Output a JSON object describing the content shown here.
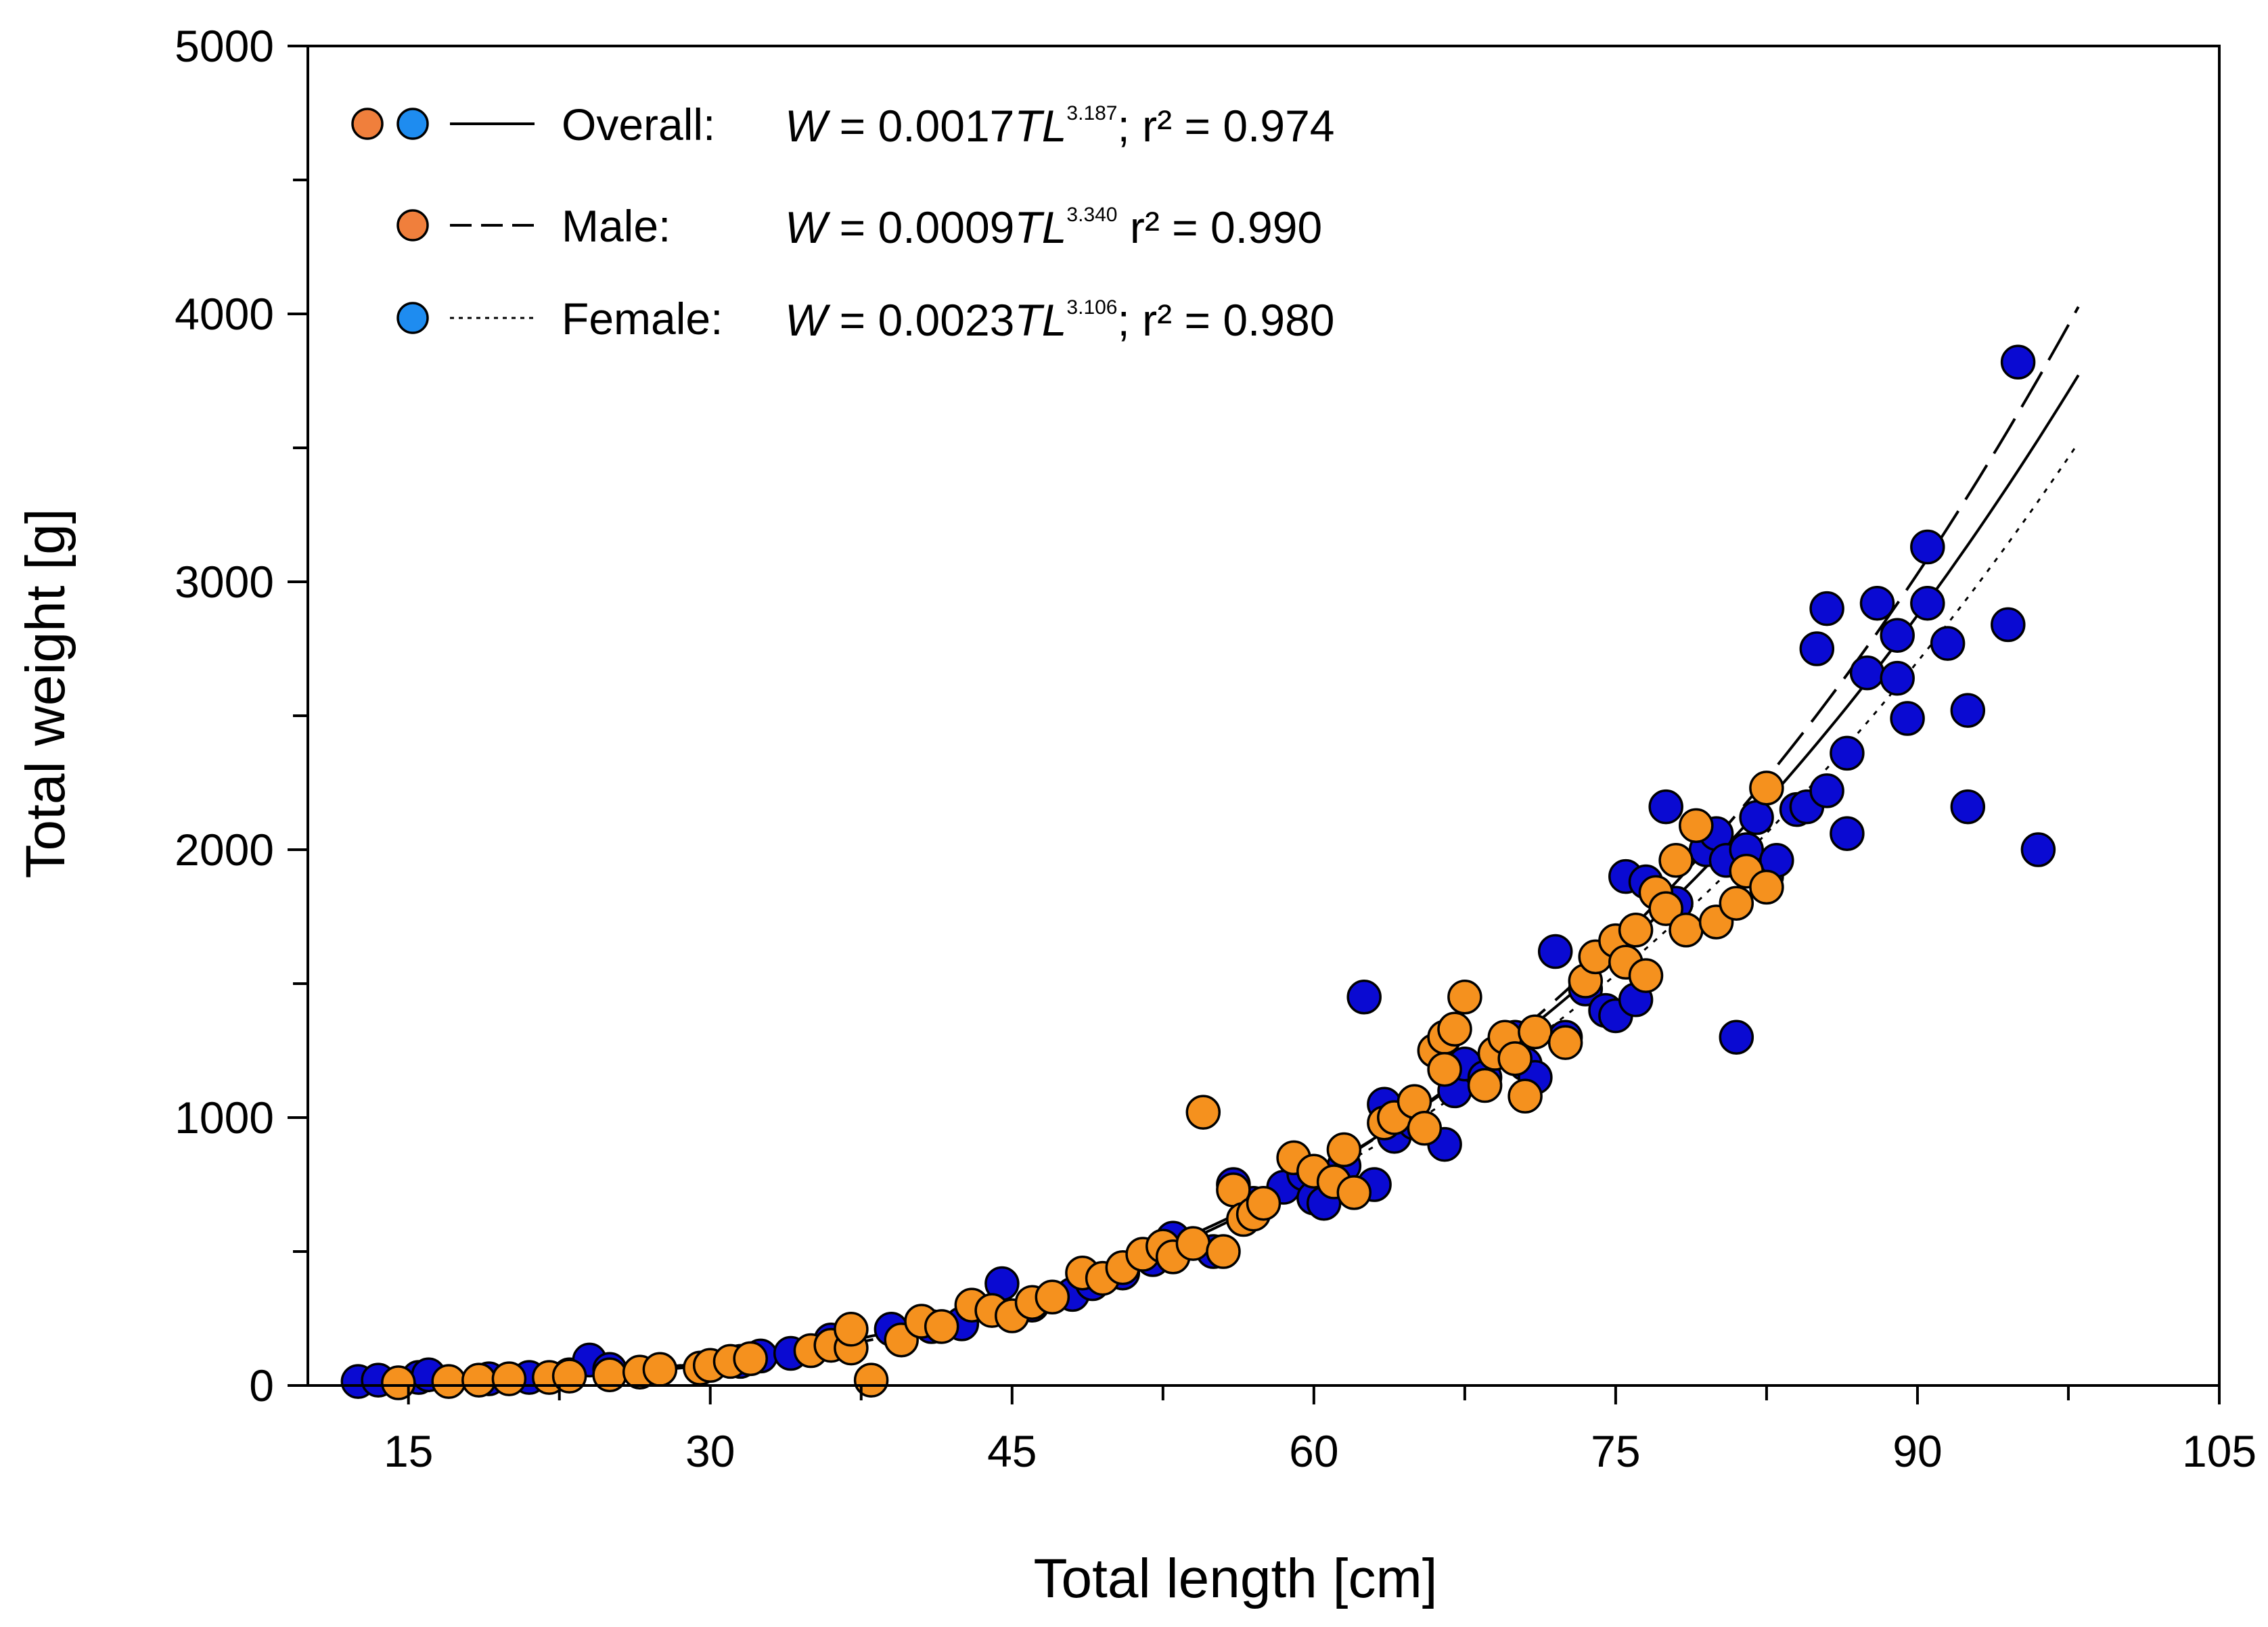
{
  "chart_data": {
    "type": "scatter",
    "title": "",
    "xlabel": "Total length [cm]",
    "ylabel": "Total weight [g]",
    "xlim": [
      10,
      105
    ],
    "ylim": [
      0,
      5000
    ],
    "xticks": [
      15,
      30,
      45,
      60,
      75,
      90,
      105
    ],
    "xticks_minor_step": 7.5,
    "yticks": [
      0,
      1000,
      2000,
      3000,
      4000,
      5000
    ],
    "yticks_minor_step": 500,
    "grid": false,
    "legend_position": "top-left",
    "colors": {
      "male": "#f5911e",
      "male_legend": "#f07f3c",
      "female": "#0a0ad2",
      "female_legend": "#1e8cf0",
      "curve": "#000000"
    },
    "legend": [
      {
        "key": "overall",
        "label": "Overall:",
        "markers": [
          "male_legend",
          "female_legend"
        ],
        "line_style": "solid",
        "eq_lhs": "W",
        "eq_coef": " = 0.0017",
        "eq_var": "TL",
        "eq_exp": "3.187",
        "eq_tail": "; r² = 0.974"
      },
      {
        "key": "male",
        "label": "Male:",
        "markers": [
          "male_legend"
        ],
        "line_style": "dashed",
        "eq_lhs": "W",
        "eq_coef": " = 0.0009",
        "eq_var": "TL",
        "eq_exp": "3.340",
        "eq_tail": " r² = 0.990"
      },
      {
        "key": "female",
        "label": "Female:",
        "markers": [
          "female_legend"
        ],
        "line_style": "dotted",
        "eq_lhs": "W",
        "eq_coef": " = 0.0023",
        "eq_var": "TL",
        "eq_exp": "3.106",
        "eq_tail": "; r² = 0.980"
      }
    ],
    "curves": [
      {
        "name": "Overall",
        "a": 0.0017,
        "b": 3.187,
        "style": "solid",
        "x_range": [
          12,
          98
        ]
      },
      {
        "name": "Male",
        "a": 0.0009,
        "b": 3.34,
        "style": "dashed",
        "x_range": [
          12,
          98
        ]
      },
      {
        "name": "Female",
        "a": 0.0023,
        "b": 3.106,
        "style": "dotted",
        "x_range": [
          12,
          98
        ]
      }
    ],
    "series": [
      {
        "name": "Female",
        "color_key": "female",
        "points": [
          [
            12.5,
            15
          ],
          [
            13.5,
            20
          ],
          [
            15.5,
            30
          ],
          [
            16,
            40
          ],
          [
            19,
            25
          ],
          [
            21,
            30
          ],
          [
            23,
            40
          ],
          [
            24,
            95
          ],
          [
            25,
            60
          ],
          [
            31.5,
            90
          ],
          [
            32.5,
            110
          ],
          [
            34,
            120
          ],
          [
            36,
            170
          ],
          [
            39,
            210
          ],
          [
            41,
            220
          ],
          [
            42.5,
            230
          ],
          [
            44.5,
            380
          ],
          [
            46,
            300
          ],
          [
            48,
            340
          ],
          [
            49,
            380
          ],
          [
            50.5,
            420
          ],
          [
            52,
            470
          ],
          [
            53,
            550
          ],
          [
            55,
            500
          ],
          [
            56,
            750
          ],
          [
            57,
            680
          ],
          [
            58.5,
            740
          ],
          [
            59.5,
            790
          ],
          [
            60,
            700
          ],
          [
            60.5,
            680
          ],
          [
            61.5,
            820
          ],
          [
            62.5,
            1450
          ],
          [
            63,
            750
          ],
          [
            63.5,
            1050
          ],
          [
            64,
            930
          ],
          [
            65,
            980
          ],
          [
            66.5,
            900
          ],
          [
            67,
            1100
          ],
          [
            67.5,
            1200
          ],
          [
            68.5,
            1150
          ],
          [
            69.5,
            1250
          ],
          [
            70,
            1300
          ],
          [
            70.5,
            1200
          ],
          [
            71,
            1150
          ],
          [
            72,
            1620
          ],
          [
            72.5,
            1300
          ],
          [
            73.5,
            1480
          ],
          [
            74.5,
            1400
          ],
          [
            75,
            1380
          ],
          [
            75.5,
            1900
          ],
          [
            76,
            1440
          ],
          [
            76.5,
            1880
          ],
          [
            77.5,
            2160
          ],
          [
            78,
            1800
          ],
          [
            79.5,
            2000
          ],
          [
            80,
            2060
          ],
          [
            80.5,
            1960
          ],
          [
            81,
            1300
          ],
          [
            81.5,
            2000
          ],
          [
            82,
            2120
          ],
          [
            82.5,
            1900
          ],
          [
            83,
            1960
          ],
          [
            84,
            2150
          ],
          [
            84.5,
            2160
          ],
          [
            85,
            2750
          ],
          [
            85.5,
            2900
          ],
          [
            85.5,
            2220
          ],
          [
            86.5,
            2360
          ],
          [
            86.5,
            2060
          ],
          [
            87.5,
            2660
          ],
          [
            88,
            2920
          ],
          [
            89,
            2800
          ],
          [
            89,
            2640
          ],
          [
            89.5,
            2490
          ],
          [
            90.5,
            3130
          ],
          [
            90.5,
            2920
          ],
          [
            91.5,
            2770
          ],
          [
            92.5,
            2520
          ],
          [
            92.5,
            2160
          ],
          [
            94.5,
            2840
          ],
          [
            95,
            3820
          ],
          [
            96,
            2000
          ]
        ]
      },
      {
        "name": "Male",
        "color_key": "male",
        "points": [
          [
            14.5,
            10
          ],
          [
            17,
            15
          ],
          [
            18.5,
            20
          ],
          [
            20,
            25
          ],
          [
            22,
            30
          ],
          [
            23,
            35
          ],
          [
            25,
            40
          ],
          [
            26.5,
            50
          ],
          [
            27.5,
            60
          ],
          [
            29.5,
            65
          ],
          [
            30,
            75
          ],
          [
            31,
            90
          ],
          [
            32,
            100
          ],
          [
            35,
            130
          ],
          [
            36,
            150
          ],
          [
            37,
            140
          ],
          [
            37,
            210
          ],
          [
            38,
            20
          ],
          [
            39.5,
            170
          ],
          [
            40.5,
            240
          ],
          [
            41.5,
            220
          ],
          [
            43,
            300
          ],
          [
            44,
            280
          ],
          [
            45,
            260
          ],
          [
            46,
            310
          ],
          [
            47,
            330
          ],
          [
            48.5,
            420
          ],
          [
            49.5,
            400
          ],
          [
            50.5,
            440
          ],
          [
            51.5,
            490
          ],
          [
            52.5,
            520
          ],
          [
            53,
            480
          ],
          [
            54,
            530
          ],
          [
            54.5,
            1020
          ],
          [
            55.5,
            500
          ],
          [
            56,
            730
          ],
          [
            56.5,
            620
          ],
          [
            57,
            640
          ],
          [
            57.5,
            680
          ],
          [
            59,
            850
          ],
          [
            60,
            800
          ],
          [
            61,
            760
          ],
          [
            61.5,
            880
          ],
          [
            62,
            720
          ],
          [
            63.5,
            980
          ],
          [
            64,
            1000
          ],
          [
            65,
            1060
          ],
          [
            65.5,
            960
          ],
          [
            66,
            1250
          ],
          [
            66.5,
            1300
          ],
          [
            66.5,
            1180
          ],
          [
            67,
            1330
          ],
          [
            67.5,
            1450
          ],
          [
            68.5,
            1120
          ],
          [
            69,
            1240
          ],
          [
            69.5,
            1300
          ],
          [
            70,
            1220
          ],
          [
            70.5,
            1080
          ],
          [
            71,
            1320
          ],
          [
            72.5,
            1280
          ],
          [
            73.5,
            1510
          ],
          [
            74,
            1600
          ],
          [
            75,
            1660
          ],
          [
            75.5,
            1580
          ],
          [
            76,
            1700
          ],
          [
            76.5,
            1530
          ],
          [
            77,
            1840
          ],
          [
            77.5,
            1780
          ],
          [
            78,
            1960
          ],
          [
            78.5,
            1700
          ],
          [
            79,
            2090
          ],
          [
            80,
            1730
          ],
          [
            81,
            1800
          ],
          [
            81.5,
            1920
          ],
          [
            82.5,
            1860
          ],
          [
            82.5,
            2230
          ]
        ]
      }
    ]
  }
}
